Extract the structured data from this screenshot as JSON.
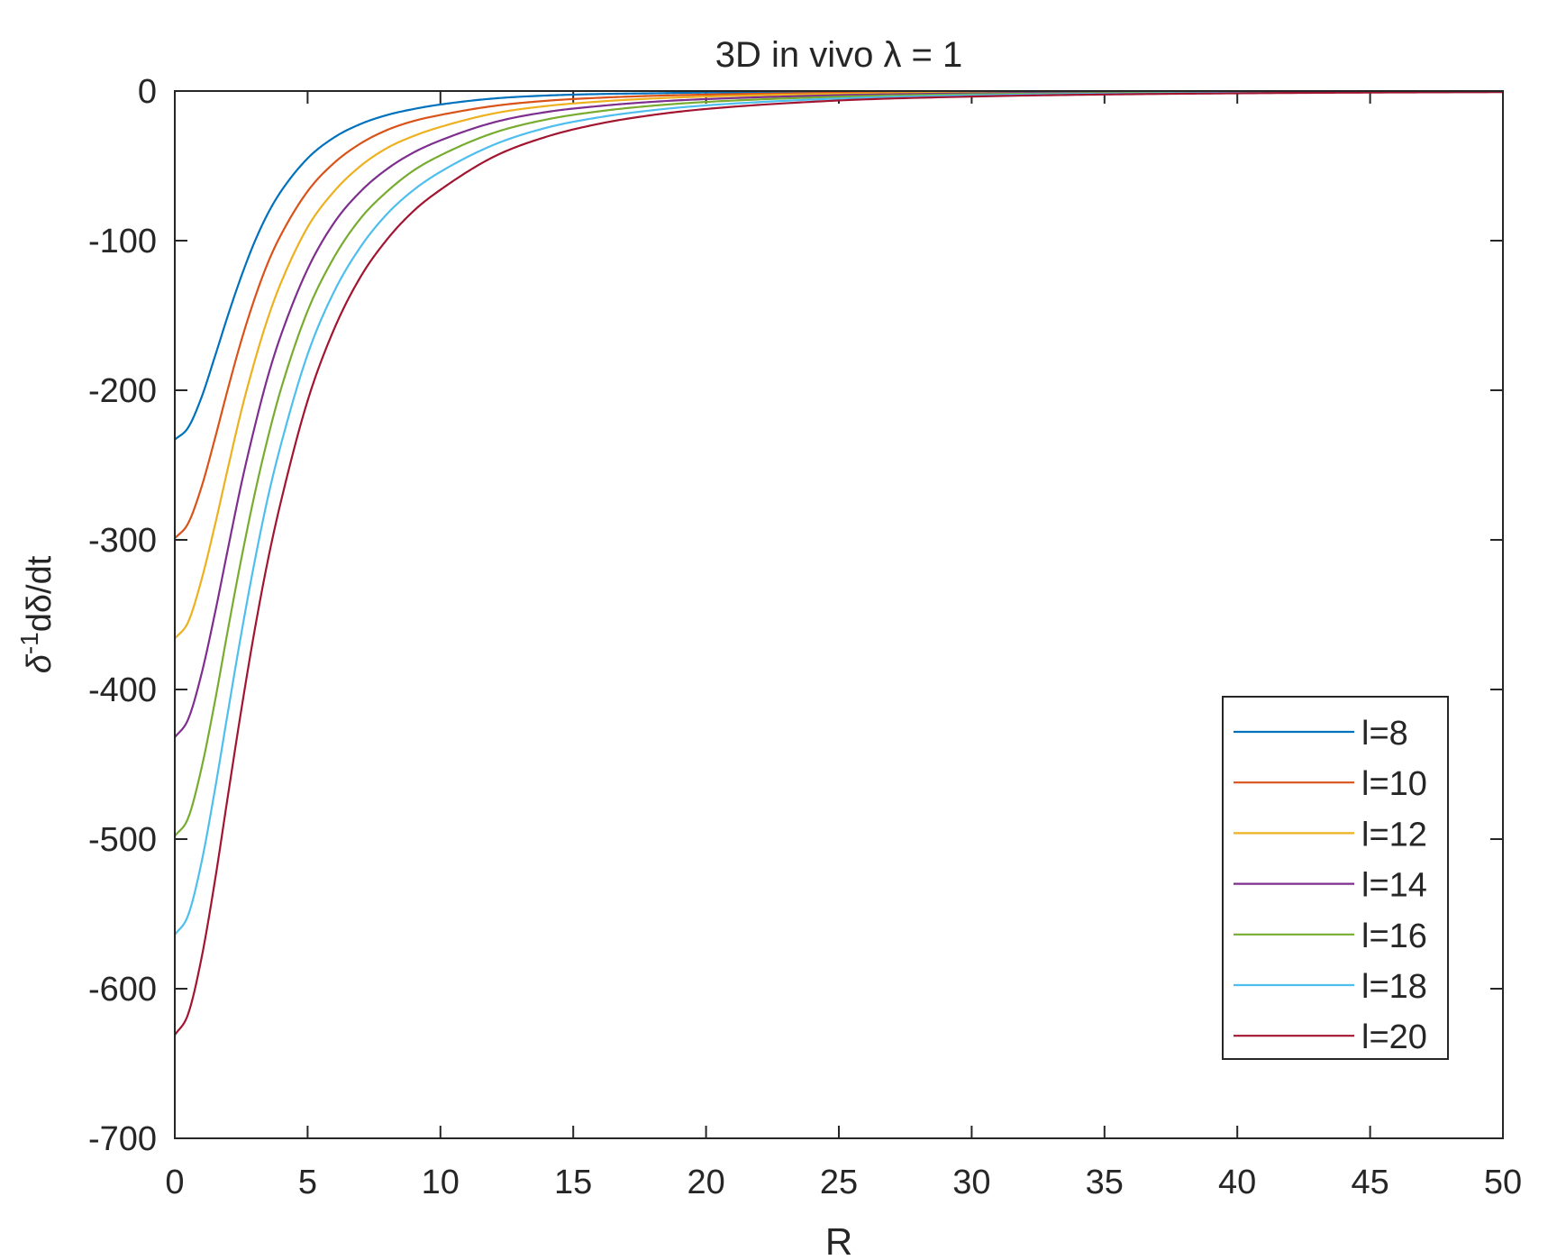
{
  "chart_data": {
    "type": "line",
    "title": "3D in vivo λ = 1",
    "xlabel": "R",
    "ylabel": {
      "base": "δ",
      "sup": "-1",
      "rest": "dδ/dt"
    },
    "xlim": [
      0,
      50
    ],
    "ylim": [
      -700,
      0
    ],
    "xticks": [
      0,
      5,
      10,
      15,
      20,
      25,
      30,
      35,
      40,
      45,
      50
    ],
    "yticks": [
      0,
      -100,
      -200,
      -300,
      -400,
      -500,
      -600,
      -700
    ],
    "grid": false,
    "legend_position": "bottom-right",
    "series": [
      {
        "name": "l=8",
        "color": "#0072BD",
        "x": [
          0,
          0.5,
          1,
          1.5,
          2,
          2.5,
          3,
          3.5,
          4,
          5,
          6,
          7,
          8,
          9,
          10,
          12,
          14,
          16,
          18,
          20,
          25,
          30,
          35,
          40,
          45,
          50
        ],
        "y": [
          -233,
          -225,
          -205,
          -178,
          -150,
          -124,
          -101,
          -82,
          -67,
          -45,
          -31,
          -22,
          -16,
          -12,
          -9,
          -5,
          -3,
          -2,
          -1.5,
          -1,
          -0.5,
          -0.3,
          -0.2,
          -0.1,
          -0.1,
          -0.1
        ]
      },
      {
        "name": "l=10",
        "color": "#D95319",
        "x": [
          0,
          0.5,
          1,
          1.5,
          2,
          2.5,
          3,
          3.5,
          4,
          5,
          6,
          7,
          8,
          9,
          10,
          12,
          14,
          16,
          18,
          20,
          25,
          30,
          35,
          40,
          45,
          50
        ],
        "y": [
          -299,
          -289,
          -265,
          -233,
          -199,
          -167,
          -139,
          -115,
          -96,
          -67,
          -48,
          -35,
          -26,
          -20,
          -16,
          -10,
          -6.5,
          -4.5,
          -3.2,
          -2.4,
          -1.2,
          -0.7,
          -0.4,
          -0.3,
          -0.2,
          -0.1
        ]
      },
      {
        "name": "l=12",
        "color": "#EDB120",
        "x": [
          0,
          0.5,
          1,
          1.5,
          2,
          2.5,
          3,
          3.5,
          4,
          5,
          6,
          7,
          8,
          9,
          10,
          12,
          14,
          16,
          18,
          20,
          25,
          30,
          35,
          40,
          45,
          50
        ],
        "y": [
          -366,
          -355,
          -327,
          -291,
          -252,
          -214,
          -181,
          -152,
          -128,
          -91,
          -67,
          -50,
          -38,
          -30,
          -24,
          -15,
          -10,
          -7,
          -5,
          -3.7,
          -1.9,
          -1.1,
          -0.7,
          -0.5,
          -0.3,
          -0.2
        ]
      },
      {
        "name": "l=14",
        "color": "#7E2F8E",
        "x": [
          0,
          0.5,
          1,
          1.5,
          2,
          2.5,
          3,
          3.5,
          4,
          5,
          6,
          7,
          8,
          9,
          10,
          12,
          14,
          16,
          18,
          20,
          25,
          30,
          35,
          40,
          45,
          50
        ],
        "y": [
          -432,
          -420,
          -390,
          -350,
          -306,
          -263,
          -225,
          -191,
          -163,
          -119,
          -88,
          -67,
          -52,
          -41,
          -33,
          -21,
          -14,
          -10,
          -7.2,
          -5.4,
          -2.8,
          -1.6,
          -1.0,
          -0.7,
          -0.5,
          -0.3
        ]
      },
      {
        "name": "l=16",
        "color": "#77AC30",
        "x": [
          0,
          0.5,
          1,
          1.5,
          2,
          2.5,
          3,
          3.5,
          4,
          5,
          6,
          7,
          8,
          9,
          10,
          12,
          14,
          16,
          18,
          20,
          25,
          30,
          35,
          40,
          45,
          50
        ],
        "y": [
          -498,
          -486,
          -453,
          -409,
          -360,
          -313,
          -270,
          -232,
          -199,
          -147,
          -111,
          -85,
          -67,
          -53,
          -43,
          -28,
          -19,
          -13.5,
          -9.8,
          -7.3,
          -3.8,
          -2.2,
          -1.4,
          -0.9,
          -0.6,
          -0.4
        ]
      },
      {
        "name": "l=18",
        "color": "#4DBEEE",
        "x": [
          0,
          0.5,
          1,
          1.5,
          2,
          2.5,
          3,
          3.5,
          4,
          5,
          6,
          7,
          8,
          9,
          10,
          12,
          14,
          16,
          18,
          20,
          25,
          30,
          35,
          40,
          45,
          50
        ],
        "y": [
          -564,
          -551,
          -516,
          -468,
          -415,
          -363,
          -315,
          -272,
          -236,
          -176,
          -134,
          -104,
          -82,
          -66,
          -54,
          -36,
          -24.5,
          -17.5,
          -12.8,
          -9.6,
          -5,
          -2.9,
          -1.8,
          -1.2,
          -0.8,
          -0.6
        ]
      },
      {
        "name": "l=20",
        "color": "#A2142F",
        "x": [
          0,
          0.5,
          1,
          1.5,
          2,
          2.5,
          3,
          3.5,
          4,
          5,
          6,
          7,
          8,
          9,
          10,
          12,
          14,
          16,
          18,
          20,
          25,
          30,
          35,
          40,
          45,
          50
        ],
        "y": [
          -631,
          -617,
          -580,
          -529,
          -471,
          -414,
          -361,
          -314,
          -274,
          -207,
          -159,
          -124,
          -99,
          -80,
          -66,
          -44,
          -30.5,
          -21.8,
          -16,
          -12,
          -6.3,
          -3.7,
          -2.3,
          -1.5,
          -1.0,
          -0.7
        ]
      }
    ]
  }
}
